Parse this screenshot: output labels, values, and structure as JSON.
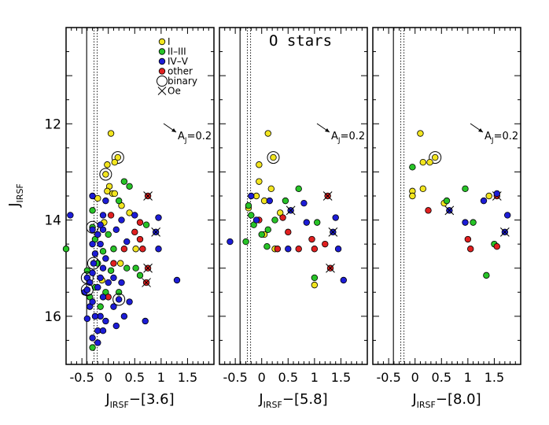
{
  "chart_data": {
    "type": "scatter",
    "ylabel": "J",
    "ylabel_sub": "IRSF",
    "ylim": [
      17.0,
      10.0
    ],
    "yticks": [
      12,
      14,
      16
    ],
    "y_minor_step": 0.5,
    "x_ticks": [
      -0.5,
      0,
      0.5,
      1,
      1.5
    ],
    "x_tick_labels": [
      "-0.5",
      "0",
      "0.5",
      "1",
      "1.5"
    ],
    "xlim": [
      -0.8,
      2.0
    ],
    "reddening_label": "A",
    "reddening_sub": "J",
    "reddening_value": "=0.2",
    "reference_lines": [
      {
        "x": -0.41,
        "style": "solid"
      },
      {
        "x": -0.27,
        "style": "dotted"
      },
      {
        "x": -0.21,
        "style": "dotted"
      }
    ],
    "legend": [
      {
        "label": "I",
        "marker": "circle",
        "color": "#f2e51f"
      },
      {
        "label": "II–III",
        "marker": "circle",
        "color": "#27c327"
      },
      {
        "label": "IV–V",
        "marker": "circle",
        "color": "#1c1cd6"
      },
      {
        "label": "other",
        "marker": "circle",
        "color": "#e02020"
      },
      {
        "label": "binary",
        "marker": "ring"
      },
      {
        "label": "Oe",
        "marker": "cross"
      }
    ],
    "colors": {
      "I": "#f2e51f",
      "II-III": "#27c327",
      "IV-V": "#1c1cd6",
      "other": "#e02020"
    },
    "panels": [
      {
        "id": "panel-3-6",
        "xlabel_main": "J",
        "xlabel_sub": "IRSF",
        "xlabel_rest": "−[3.6]",
        "title": "",
        "show_legend": true,
        "points": [
          {
            "x": 0.05,
            "y": 12.2,
            "c": "I"
          },
          {
            "x": 0.18,
            "y": 12.7,
            "c": "I",
            "binary": true
          },
          {
            "x": 0.12,
            "y": 12.8,
            "c": "I"
          },
          {
            "x": -0.02,
            "y": 12.85,
            "c": "I"
          },
          {
            "x": -0.05,
            "y": 13.05,
            "c": "I",
            "binary": true
          },
          {
            "x": 0.02,
            "y": 13.3,
            "c": "I"
          },
          {
            "x": -0.02,
            "y": 13.4,
            "c": "I"
          },
          {
            "x": 0.08,
            "y": 13.45,
            "c": "I"
          },
          {
            "x": 0.12,
            "y": 13.45,
            "c": "I"
          },
          {
            "x": -0.2,
            "y": 13.55,
            "c": "I"
          },
          {
            "x": 0.4,
            "y": 13.85,
            "c": "I"
          },
          {
            "x": 0.25,
            "y": 13.7,
            "c": "I"
          },
          {
            "x": -0.08,
            "y": 14.05,
            "c": "I"
          },
          {
            "x": 0.52,
            "y": 14.6,
            "c": "I"
          },
          {
            "x": 0.23,
            "y": 14.9,
            "c": "I"
          },
          {
            "x": -0.12,
            "y": 15.25,
            "c": "I"
          },
          {
            "x": 0.3,
            "y": 13.2,
            "c": "II-III"
          },
          {
            "x": 0.4,
            "y": 13.3,
            "c": "II-III"
          },
          {
            "x": 0.2,
            "y": 13.6,
            "c": "II-III"
          },
          {
            "x": -0.3,
            "y": 13.8,
            "c": "II-III"
          },
          {
            "x": -0.3,
            "y": 14.15,
            "c": "II-III",
            "binary": true
          },
          {
            "x": -0.8,
            "y": 14.6,
            "c": "II-III"
          },
          {
            "x": -0.25,
            "y": 14.4,
            "c": "II-III"
          },
          {
            "x": -0.2,
            "y": 14.9,
            "c": "II-III"
          },
          {
            "x": -0.25,
            "y": 15.4,
            "c": "II-III"
          },
          {
            "x": -0.35,
            "y": 15.6,
            "c": "II-III"
          },
          {
            "x": -0.15,
            "y": 15.8,
            "c": "II-III"
          },
          {
            "x": -0.3,
            "y": 16.65,
            "c": "II-III"
          },
          {
            "x": 0.6,
            "y": 15.15,
            "c": "II-III"
          },
          {
            "x": 0.52,
            "y": 15.0,
            "c": "II-III"
          },
          {
            "x": -0.05,
            "y": 15.5,
            "c": "II-III"
          },
          {
            "x": 0.05,
            "y": 15.05,
            "c": "II-III"
          },
          {
            "x": 0.2,
            "y": 15.5,
            "c": "II-III"
          },
          {
            "x": 0.35,
            "y": 15.0,
            "c": "II-III"
          },
          {
            "x": -0.4,
            "y": 15.05,
            "c": "II-III"
          },
          {
            "x": -0.1,
            "y": 14.65,
            "c": "II-III"
          },
          {
            "x": 0.1,
            "y": 14.6,
            "c": "II-III"
          },
          {
            "x": 0.0,
            "y": 14.3,
            "c": "II-III"
          },
          {
            "x": 0.72,
            "y": 14.1,
            "c": "II-III"
          },
          {
            "x": 0.75,
            "y": 13.5,
            "c": "other",
            "oe": true
          },
          {
            "x": 0.6,
            "y": 14.05,
            "c": "other"
          },
          {
            "x": 0.5,
            "y": 14.25,
            "c": "other"
          },
          {
            "x": 0.6,
            "y": 14.4,
            "c": "other"
          },
          {
            "x": 0.3,
            "y": 14.6,
            "c": "other"
          },
          {
            "x": 0.65,
            "y": 14.6,
            "c": "other"
          },
          {
            "x": 0.1,
            "y": 14.9,
            "c": "other"
          },
          {
            "x": 0.75,
            "y": 15.0,
            "c": "other",
            "oe": true
          },
          {
            "x": 0.72,
            "y": 15.3,
            "c": "other",
            "oe": true
          },
          {
            "x": 0.05,
            "y": 13.9,
            "c": "other"
          },
          {
            "x": 0.0,
            "y": 15.6,
            "c": "other"
          },
          {
            "x": -0.3,
            "y": 13.5,
            "c": "IV-V"
          },
          {
            "x": -0.72,
            "y": 13.9,
            "c": "IV-V"
          },
          {
            "x": 0.35,
            "y": 14.45,
            "c": "IV-V"
          },
          {
            "x": 0.95,
            "y": 13.95,
            "c": "IV-V"
          },
          {
            "x": 0.9,
            "y": 14.25,
            "c": "IV-V",
            "oe": true
          },
          {
            "x": 0.95,
            "y": 14.6,
            "c": "IV-V"
          },
          {
            "x": 1.3,
            "y": 15.25,
            "c": "IV-V"
          },
          {
            "x": 0.7,
            "y": 16.1,
            "c": "IV-V"
          },
          {
            "x": 0.2,
            "y": 15.65,
            "c": "IV-V",
            "binary": true
          },
          {
            "x": 0.25,
            "y": 15.3,
            "c": "IV-V"
          },
          {
            "x": 0.1,
            "y": 15.8,
            "c": "IV-V"
          },
          {
            "x": -0.15,
            "y": 16.0,
            "c": "IV-V"
          },
          {
            "x": -0.3,
            "y": 16.45,
            "c": "IV-V"
          },
          {
            "x": -0.2,
            "y": 16.3,
            "c": "IV-V"
          },
          {
            "x": -0.05,
            "y": 16.1,
            "c": "IV-V"
          },
          {
            "x": -0.45,
            "y": 15.5,
            "c": "IV-V"
          },
          {
            "x": -0.4,
            "y": 15.2,
            "c": "IV-V",
            "binary": true
          },
          {
            "x": -0.35,
            "y": 15.3,
            "c": "IV-V"
          },
          {
            "x": -0.3,
            "y": 15.1,
            "c": "IV-V"
          },
          {
            "x": -0.28,
            "y": 14.9,
            "c": "IV-V",
            "binary": true
          },
          {
            "x": -0.25,
            "y": 14.7,
            "c": "IV-V"
          },
          {
            "x": -0.2,
            "y": 15.4,
            "c": "IV-V"
          },
          {
            "x": -0.15,
            "y": 15.2,
            "c": "IV-V"
          },
          {
            "x": -0.1,
            "y": 15.0,
            "c": "IV-V"
          },
          {
            "x": -0.1,
            "y": 15.6,
            "c": "IV-V"
          },
          {
            "x": -0.05,
            "y": 14.8,
            "c": "IV-V"
          },
          {
            "x": 0.0,
            "y": 15.3,
            "c": "IV-V"
          },
          {
            "x": -0.35,
            "y": 15.8,
            "c": "IV-V"
          },
          {
            "x": -0.25,
            "y": 16.0,
            "c": "IV-V"
          },
          {
            "x": -0.4,
            "y": 15.45,
            "c": "IV-V",
            "binary": true
          },
          {
            "x": -0.3,
            "y": 14.5,
            "c": "IV-V"
          },
          {
            "x": -0.15,
            "y": 14.5,
            "c": "IV-V"
          },
          {
            "x": -0.2,
            "y": 14.3,
            "c": "IV-V"
          },
          {
            "x": -0.3,
            "y": 14.2,
            "c": "IV-V"
          },
          {
            "x": -0.1,
            "y": 14.2,
            "c": "IV-V"
          },
          {
            "x": 0.15,
            "y": 14.2,
            "c": "IV-V"
          },
          {
            "x": 0.25,
            "y": 14.0,
            "c": "IV-V"
          },
          {
            "x": -0.1,
            "y": 13.9,
            "c": "IV-V"
          },
          {
            "x": 0.5,
            "y": 13.9,
            "c": "IV-V"
          },
          {
            "x": -0.05,
            "y": 13.6,
            "c": "IV-V"
          },
          {
            "x": -0.4,
            "y": 16.05,
            "c": "IV-V"
          },
          {
            "x": -0.2,
            "y": 16.55,
            "c": "IV-V"
          },
          {
            "x": 0.15,
            "y": 16.2,
            "c": "IV-V"
          },
          {
            "x": 0.3,
            "y": 16.0,
            "c": "IV-V"
          },
          {
            "x": 0.1,
            "y": 15.2,
            "c": "IV-V"
          },
          {
            "x": -0.3,
            "y": 15.7,
            "c": "IV-V"
          },
          {
            "x": -0.1,
            "y": 16.3,
            "c": "IV-V"
          },
          {
            "x": -0.15,
            "y": 14.1,
            "c": "IV-V"
          },
          {
            "x": 0.4,
            "y": 15.7,
            "c": "IV-V"
          }
        ]
      },
      {
        "id": "panel-5-8",
        "xlabel_main": "J",
        "xlabel_sub": "IRSF",
        "xlabel_rest": "−[5.8]",
        "title": "O stars",
        "show_legend": false,
        "points": [
          {
            "x": 0.12,
            "y": 12.2,
            "c": "I"
          },
          {
            "x": 0.22,
            "y": 12.7,
            "c": "I",
            "binary": true
          },
          {
            "x": -0.05,
            "y": 12.85,
            "c": "I"
          },
          {
            "x": -0.05,
            "y": 13.2,
            "c": "I"
          },
          {
            "x": 0.18,
            "y": 13.35,
            "c": "I"
          },
          {
            "x": -0.1,
            "y": 13.5,
            "c": "I"
          },
          {
            "x": 0.05,
            "y": 13.6,
            "c": "I"
          },
          {
            "x": -0.25,
            "y": 13.75,
            "c": "I"
          },
          {
            "x": 0.35,
            "y": 13.85,
            "c": "I"
          },
          {
            "x": 0.05,
            "y": 14.3,
            "c": "I"
          },
          {
            "x": 0.25,
            "y": 14.6,
            "c": "I"
          },
          {
            "x": 1.0,
            "y": 15.35,
            "c": "I"
          },
          {
            "x": 0.7,
            "y": 13.35,
            "c": "II-III"
          },
          {
            "x": 0.45,
            "y": 13.6,
            "c": "II-III"
          },
          {
            "x": -0.25,
            "y": 13.7,
            "c": "II-III"
          },
          {
            "x": -0.2,
            "y": 13.9,
            "c": "II-III"
          },
          {
            "x": -0.15,
            "y": 14.1,
            "c": "II-III"
          },
          {
            "x": 0.0,
            "y": 14.3,
            "c": "II-III"
          },
          {
            "x": -0.3,
            "y": 14.45,
            "c": "II-III"
          },
          {
            "x": 0.25,
            "y": 14.0,
            "c": "II-III"
          },
          {
            "x": 0.12,
            "y": 14.2,
            "c": "II-III"
          },
          {
            "x": 1.05,
            "y": 14.05,
            "c": "II-III"
          },
          {
            "x": 1.0,
            "y": 15.2,
            "c": "II-III"
          },
          {
            "x": 0.1,
            "y": 14.55,
            "c": "II-III"
          },
          {
            "x": 1.25,
            "y": 13.5,
            "c": "other",
            "oe": true
          },
          {
            "x": 0.4,
            "y": 13.95,
            "c": "other"
          },
          {
            "x": 0.5,
            "y": 14.25,
            "c": "other"
          },
          {
            "x": 0.95,
            "y": 14.4,
            "c": "other"
          },
          {
            "x": 0.3,
            "y": 14.6,
            "c": "other"
          },
          {
            "x": 0.7,
            "y": 14.6,
            "c": "other"
          },
          {
            "x": 1.2,
            "y": 14.5,
            "c": "other"
          },
          {
            "x": 1.3,
            "y": 15.0,
            "c": "other",
            "oe": true
          },
          {
            "x": -0.05,
            "y": 14.0,
            "c": "other"
          },
          {
            "x": 1.0,
            "y": 14.6,
            "c": "other"
          },
          {
            "x": -0.2,
            "y": 13.5,
            "c": "IV-V"
          },
          {
            "x": -0.6,
            "y": 14.45,
            "c": "IV-V"
          },
          {
            "x": 0.5,
            "y": 14.6,
            "c": "IV-V"
          },
          {
            "x": 1.4,
            "y": 13.95,
            "c": "IV-V"
          },
          {
            "x": 1.35,
            "y": 14.25,
            "c": "IV-V",
            "oe": true
          },
          {
            "x": 1.45,
            "y": 14.6,
            "c": "IV-V"
          },
          {
            "x": 1.55,
            "y": 15.25,
            "c": "IV-V"
          },
          {
            "x": 0.55,
            "y": 13.8,
            "c": "IV-V",
            "oe": true
          },
          {
            "x": 0.85,
            "y": 14.05,
            "c": "IV-V"
          },
          {
            "x": 0.8,
            "y": 13.65,
            "c": "IV-V"
          },
          {
            "x": -0.1,
            "y": 14.0,
            "c": "IV-V"
          },
          {
            "x": 0.15,
            "y": 13.6,
            "c": "IV-V"
          }
        ]
      },
      {
        "id": "panel-8-0",
        "xlabel_main": "J",
        "xlabel_sub": "IRSF",
        "xlabel_rest": "−[8.0]",
        "title": "",
        "show_legend": false,
        "points": [
          {
            "x": 0.1,
            "y": 12.2,
            "c": "I"
          },
          {
            "x": 0.38,
            "y": 12.7,
            "c": "I",
            "binary": true
          },
          {
            "x": 0.15,
            "y": 12.8,
            "c": "I"
          },
          {
            "x": 0.28,
            "y": 12.8,
            "c": "I"
          },
          {
            "x": -0.05,
            "y": 13.4,
            "c": "I"
          },
          {
            "x": -0.05,
            "y": 13.5,
            "c": "I"
          },
          {
            "x": 0.15,
            "y": 13.35,
            "c": "I"
          },
          {
            "x": 0.55,
            "y": 13.65,
            "c": "I"
          },
          {
            "x": 1.4,
            "y": 13.5,
            "c": "I"
          },
          {
            "x": -0.05,
            "y": 12.9,
            "c": "II-III"
          },
          {
            "x": 0.95,
            "y": 13.35,
            "c": "II-III"
          },
          {
            "x": 1.1,
            "y": 14.05,
            "c": "II-III"
          },
          {
            "x": 1.5,
            "y": 14.5,
            "c": "II-III"
          },
          {
            "x": 1.35,
            "y": 15.15,
            "c": "II-III"
          },
          {
            "x": 0.6,
            "y": 13.6,
            "c": "II-III"
          },
          {
            "x": 1.55,
            "y": 13.5,
            "c": "other",
            "oe": true
          },
          {
            "x": 0.25,
            "y": 13.8,
            "c": "other"
          },
          {
            "x": 1.0,
            "y": 14.4,
            "c": "other"
          },
          {
            "x": 1.05,
            "y": 14.6,
            "c": "other"
          },
          {
            "x": 1.55,
            "y": 14.55,
            "c": "other"
          },
          {
            "x": 1.75,
            "y": 13.9,
            "c": "IV-V"
          },
          {
            "x": 1.7,
            "y": 14.25,
            "c": "IV-V",
            "oe": true
          },
          {
            "x": 0.65,
            "y": 13.8,
            "c": "IV-V",
            "oe": true
          },
          {
            "x": 0.95,
            "y": 14.05,
            "c": "IV-V"
          },
          {
            "x": 1.3,
            "y": 13.6,
            "c": "IV-V"
          },
          {
            "x": 1.55,
            "y": 13.45,
            "c": "IV-V"
          }
        ]
      }
    ]
  }
}
